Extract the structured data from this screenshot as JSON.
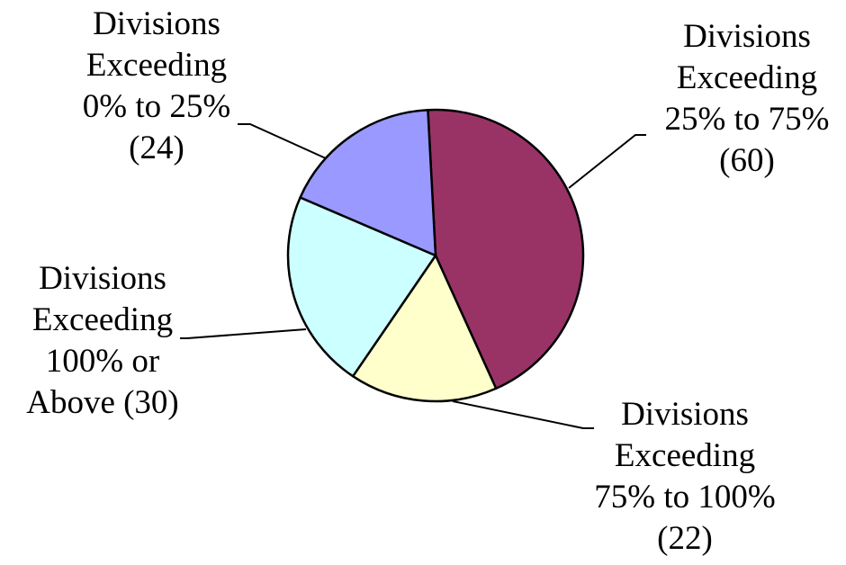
{
  "chart_data": {
    "type": "pie",
    "title": "",
    "slices": [
      {
        "label_lines": [
          "Divisions",
          "Exceeding",
          "25% to 75%",
          "(60)"
        ],
        "value": 60,
        "color": "#993366"
      },
      {
        "label_lines": [
          "Divisions",
          "Exceeding",
          "75% to 100%",
          "(22)"
        ],
        "value": 22,
        "color": "#FFFFCC"
      },
      {
        "label_lines": [
          "Divisions",
          "Exceeding",
          "100% or",
          "Above (30)"
        ],
        "value": 30,
        "color": "#CCFFFF"
      },
      {
        "label_lines": [
          "Divisions",
          "Exceeding",
          "0% to 25%",
          "(24)"
        ],
        "value": 24,
        "color": "#9999FF"
      }
    ],
    "outline_color": "#000000",
    "leader_line_color": "#000000"
  }
}
